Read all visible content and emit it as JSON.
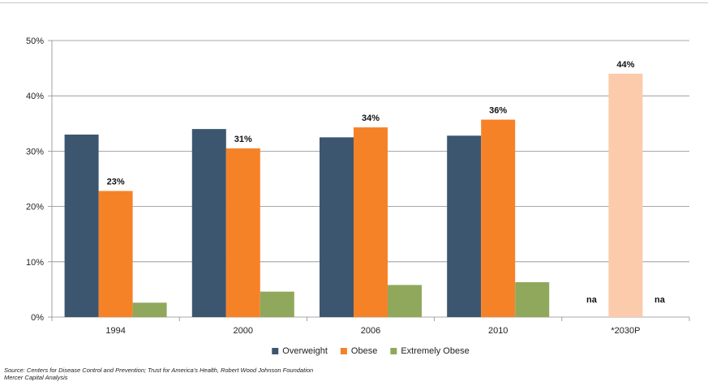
{
  "chart_data": {
    "type": "bar",
    "categories": [
      "1994",
      "2000",
      "2006",
      "2010",
      "*2030P"
    ],
    "series": [
      {
        "name": "Overweight",
        "values": [
          33,
          34,
          32.5,
          32.8,
          null
        ],
        "color": "#3c5670"
      },
      {
        "name": "Obese",
        "values": [
          22.8,
          30.5,
          34.3,
          35.7,
          44
        ],
        "color": "#f68228",
        "highlight_color": "#fbcbab"
      },
      {
        "name": "Extremely Obese",
        "values": [
          2.6,
          4.6,
          5.8,
          6.3,
          null
        ],
        "color": "#8fa85c"
      }
    ],
    "data_labels": [
      {
        "series": "Obese",
        "category": "1994",
        "text": "23%"
      },
      {
        "series": "Obese",
        "category": "2000",
        "text": "31%"
      },
      {
        "series": "Obese",
        "category": "2006",
        "text": "34%"
      },
      {
        "series": "Obese",
        "category": "2010",
        "text": "36%"
      },
      {
        "series": "Obese",
        "category": "*2030P",
        "text": "44%"
      },
      {
        "series": "Overweight",
        "category": "*2030P",
        "text": "na"
      },
      {
        "series": "Extremely Obese",
        "category": "*2030P",
        "text": "na"
      }
    ],
    "ylim": [
      0,
      50
    ],
    "yticks": [
      0,
      10,
      20,
      30,
      40,
      50
    ],
    "ytick_labels": [
      "0%",
      "10%",
      "20%",
      "30%",
      "40%",
      "50%"
    ],
    "grid": true,
    "legend_position": "bottom-center",
    "xlabel": "",
    "ylabel": ""
  },
  "footer": {
    "source_line1": "Source: Centers for Disease Control and Prevention; Trust for America's Health, Robert Wood Johnson Foundation",
    "source_line2": "Mercer Capital Analysis"
  }
}
